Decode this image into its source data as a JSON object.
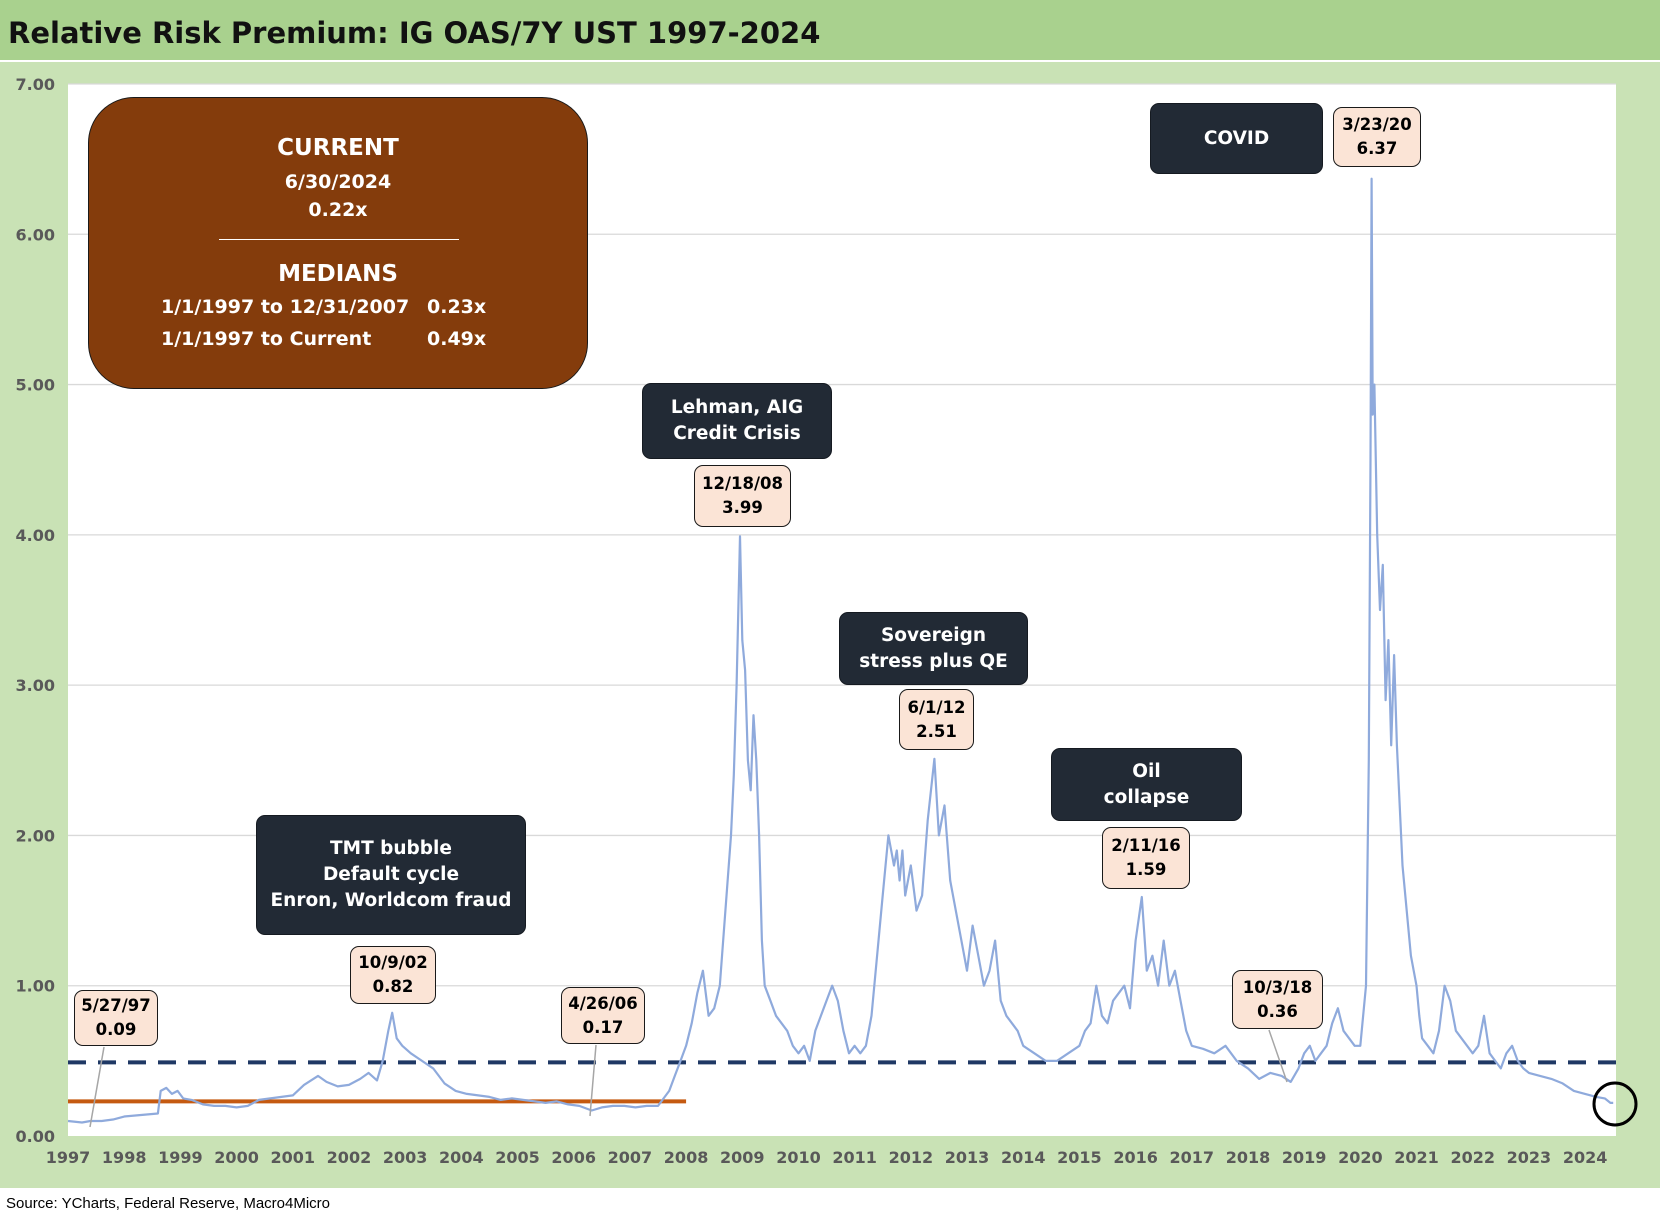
{
  "title": "Relative Risk Premium: IG OAS/7Y UST 1997-2024",
  "source": "Source: YCharts, Federal Reserve, Macro4Micro",
  "colors": {
    "background": "#c9e2b5",
    "title_bar": "#a9d18e",
    "series": "#8faadc",
    "median_full_line": "#1f3864",
    "median_early_line": "#c55a11",
    "info_box": "#843c0c",
    "event_box": "#222a35",
    "callout_box": "#fbe4d6"
  },
  "info_box": {
    "current_label": "CURRENT",
    "current_date": "6/30/2024",
    "current_value": "0.22x",
    "medians_label": "MEDIANS",
    "median_rows": [
      {
        "period": "1/1/1997 to 12/31/2007",
        "value": "0.23x"
      },
      {
        "period": "1/1/1997 to Current",
        "value": "0.49x"
      }
    ]
  },
  "events": [
    {
      "lines": [
        "TMT bubble",
        "Default cycle",
        "Enron, Worldcom fraud"
      ]
    },
    {
      "lines": [
        "Lehman, AIG",
        "Credit Crisis"
      ]
    },
    {
      "lines": [
        "Sovereign",
        "stress plus QE"
      ]
    },
    {
      "lines": [
        "Oil",
        "collapse"
      ]
    },
    {
      "lines": [
        "COVID"
      ]
    }
  ],
  "callouts": [
    {
      "date": "5/27/97",
      "value": "0.09"
    },
    {
      "date": "10/9/02",
      "value": "0.82"
    },
    {
      "date": "4/26/06",
      "value": "0.17"
    },
    {
      "date": "12/18/08",
      "value": "3.99"
    },
    {
      "date": "6/1/12",
      "value": "2.51"
    },
    {
      "date": "2/11/16",
      "value": "1.59"
    },
    {
      "date": "10/3/18",
      "value": "0.36"
    },
    {
      "date": "3/23/20",
      "value": "6.37"
    }
  ],
  "chart_data": {
    "type": "line",
    "title": "Relative Risk Premium: IG OAS/7Y UST 1997-2024",
    "xlabel": "",
    "ylabel": "",
    "xlim": [
      1997.0,
      2024.55
    ],
    "ylim": [
      0,
      7
    ],
    "grid": true,
    "y_ticks": [
      "0.00",
      "1.00",
      "2.00",
      "3.00",
      "4.00",
      "5.00",
      "6.00",
      "7.00"
    ],
    "x_tick_labels": [
      "1997",
      "1998",
      "1999",
      "2000",
      "2001",
      "2002",
      "2003",
      "2004",
      "2005",
      "2006",
      "2007",
      "2008",
      "2009",
      "2010",
      "2011",
      "2012",
      "2013",
      "2014",
      "2015",
      "2016",
      "2017",
      "2018",
      "2019",
      "2020",
      "2021",
      "2022",
      "2023",
      "2024"
    ],
    "reference_lines": [
      {
        "value": 0.49,
        "style": "dashed",
        "x_range": [
          1997.0,
          2024.55
        ]
      },
      {
        "value": 0.23,
        "style": "solid",
        "x_range": [
          1997.0,
          2008.0
        ]
      }
    ],
    "series": [
      {
        "x": [
          1997.0,
          1997.25,
          1997.4,
          1997.6,
          1997.8,
          1998.0,
          1998.3,
          1998.6,
          1998.65,
          1998.75,
          1998.85,
          1998.95,
          1999.05,
          1999.2,
          1999.4,
          1999.6,
          1999.8,
          2000.0,
          2000.2,
          2000.4,
          2000.6,
          2000.8,
          2001.0,
          2001.2,
          2001.45,
          2001.6,
          2001.8,
          2002.0,
          2002.2,
          2002.35,
          2002.5,
          2002.6,
          2002.7,
          2002.77,
          2002.85,
          2002.95,
          2003.1,
          2003.3,
          2003.5,
          2003.7,
          2003.9,
          2004.1,
          2004.3,
          2004.5,
          2004.7,
          2004.9,
          2005.1,
          2005.3,
          2005.5,
          2005.7,
          2005.9,
          2006.1,
          2006.32,
          2006.5,
          2006.7,
          2006.9,
          2007.1,
          2007.3,
          2007.5,
          2007.6,
          2007.7,
          2007.8,
          2007.9,
          2008.0,
          2008.1,
          2008.2,
          2008.3,
          2008.4,
          2008.5,
          2008.6,
          2008.7,
          2008.8,
          2008.85,
          2008.9,
          2008.96,
          2009.0,
          2009.05,
          2009.1,
          2009.15,
          2009.2,
          2009.25,
          2009.3,
          2009.35,
          2009.4,
          2009.5,
          2009.6,
          2009.7,
          2009.8,
          2009.9,
          2010.0,
          2010.1,
          2010.2,
          2010.3,
          2010.4,
          2010.5,
          2010.6,
          2010.7,
          2010.8,
          2010.9,
          2011.0,
          2011.1,
          2011.2,
          2011.3,
          2011.4,
          2011.5,
          2011.6,
          2011.7,
          2011.75,
          2011.8,
          2011.85,
          2011.9,
          2012.0,
          2012.1,
          2012.2,
          2012.3,
          2012.42,
          2012.5,
          2012.6,
          2012.7,
          2012.8,
          2012.9,
          2013.0,
          2013.1,
          2013.2,
          2013.3,
          2013.4,
          2013.5,
          2013.6,
          2013.7,
          2013.8,
          2013.9,
          2014.0,
          2014.2,
          2014.4,
          2014.6,
          2014.8,
          2015.0,
          2015.1,
          2015.2,
          2015.3,
          2015.4,
          2015.5,
          2015.6,
          2015.7,
          2015.8,
          2015.9,
          2016.0,
          2016.11,
          2016.2,
          2016.3,
          2016.4,
          2016.5,
          2016.6,
          2016.7,
          2016.8,
          2016.9,
          2017.0,
          2017.2,
          2017.4,
          2017.6,
          2017.8,
          2018.0,
          2018.2,
          2018.4,
          2018.6,
          2018.76,
          2018.9,
          2019.0,
          2019.1,
          2019.2,
          2019.3,
          2019.4,
          2019.5,
          2019.6,
          2019.7,
          2019.8,
          2019.9,
          2020.0,
          2020.1,
          2020.15,
          2020.18,
          2020.2,
          2020.22,
          2020.25,
          2020.3,
          2020.35,
          2020.4,
          2020.45,
          2020.5,
          2020.55,
          2020.6,
          2020.65,
          2020.7,
          2020.75,
          2020.8,
          2020.85,
          2020.9,
          2020.95,
          2021.0,
          2021.05,
          2021.1,
          2021.2,
          2021.3,
          2021.4,
          2021.5,
          2021.6,
          2021.7,
          2021.8,
          2021.9,
          2022.0,
          2022.1,
          2022.2,
          2022.3,
          2022.4,
          2022.5,
          2022.6,
          2022.7,
          2022.8,
          2022.9,
          2023.0,
          2023.2,
          2023.4,
          2023.6,
          2023.8,
          2024.0,
          2024.2,
          2024.35,
          2024.45,
          2024.5
        ],
        "y": [
          0.1,
          0.09,
          0.1,
          0.1,
          0.11,
          0.13,
          0.14,
          0.15,
          0.3,
          0.32,
          0.28,
          0.3,
          0.25,
          0.24,
          0.21,
          0.2,
          0.2,
          0.19,
          0.2,
          0.24,
          0.25,
          0.26,
          0.27,
          0.34,
          0.4,
          0.36,
          0.33,
          0.34,
          0.38,
          0.42,
          0.37,
          0.5,
          0.7,
          0.82,
          0.65,
          0.6,
          0.55,
          0.5,
          0.45,
          0.35,
          0.3,
          0.28,
          0.27,
          0.26,
          0.24,
          0.25,
          0.24,
          0.23,
          0.22,
          0.23,
          0.21,
          0.2,
          0.17,
          0.19,
          0.2,
          0.2,
          0.19,
          0.2,
          0.2,
          0.25,
          0.3,
          0.4,
          0.5,
          0.6,
          0.75,
          0.95,
          1.1,
          0.8,
          0.85,
          1.0,
          1.5,
          2.0,
          2.4,
          3.0,
          3.99,
          3.3,
          3.1,
          2.5,
          2.3,
          2.8,
          2.5,
          2.0,
          1.3,
          1.0,
          0.9,
          0.8,
          0.75,
          0.7,
          0.6,
          0.55,
          0.6,
          0.5,
          0.7,
          0.8,
          0.9,
          1.0,
          0.9,
          0.7,
          0.55,
          0.6,
          0.55,
          0.6,
          0.8,
          1.2,
          1.6,
          2.0,
          1.8,
          1.9,
          1.7,
          1.9,
          1.6,
          1.8,
          1.5,
          1.6,
          2.1,
          2.51,
          2.0,
          2.2,
          1.7,
          1.5,
          1.3,
          1.1,
          1.4,
          1.2,
          1.0,
          1.1,
          1.3,
          0.9,
          0.8,
          0.75,
          0.7,
          0.6,
          0.55,
          0.5,
          0.5,
          0.55,
          0.6,
          0.7,
          0.75,
          1.0,
          0.8,
          0.75,
          0.9,
          0.95,
          1.0,
          0.85,
          1.3,
          1.59,
          1.1,
          1.2,
          1.0,
          1.3,
          1.0,
          1.1,
          0.9,
          0.7,
          0.6,
          0.58,
          0.55,
          0.6,
          0.5,
          0.45,
          0.38,
          0.42,
          0.4,
          0.36,
          0.45,
          0.55,
          0.6,
          0.5,
          0.55,
          0.6,
          0.75,
          0.85,
          0.7,
          0.65,
          0.6,
          0.6,
          1.0,
          2.5,
          4.5,
          6.37,
          4.8,
          5.0,
          4.0,
          3.5,
          3.8,
          2.9,
          3.3,
          2.6,
          3.2,
          2.6,
          2.2,
          1.8,
          1.6,
          1.4,
          1.2,
          1.1,
          1.0,
          0.8,
          0.65,
          0.6,
          0.55,
          0.7,
          1.0,
          0.9,
          0.7,
          0.65,
          0.6,
          0.55,
          0.6,
          0.8,
          0.55,
          0.5,
          0.45,
          0.55,
          0.6,
          0.5,
          0.45,
          0.42,
          0.4,
          0.38,
          0.35,
          0.3,
          0.28,
          0.26,
          0.25,
          0.22,
          0.22
        ]
      }
    ]
  }
}
